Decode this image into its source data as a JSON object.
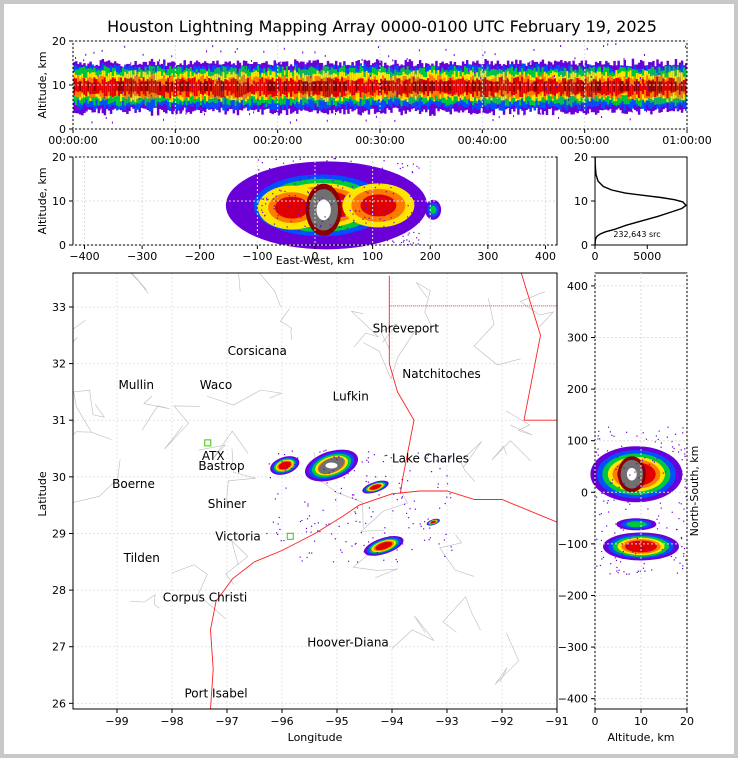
{
  "title": "Houston Lightning Mapping Array 0000-0100 UTC February 19, 2025",
  "chart_data": [
    {
      "type": "heatmap",
      "name": "altitude-time",
      "ylabel": "Altitude, km",
      "xlabel": "",
      "x_ticks": [
        "00:00:00",
        "00:10:00",
        "00:20:00",
        "00:30:00",
        "00:40:00",
        "00:50:00",
        "01:00:00"
      ],
      "y_ticks": [
        "0",
        "10",
        "20"
      ],
      "ylim": [
        0,
        20
      ],
      "grid": true,
      "note_bands": [
        {
          "color": "#6a00d8",
          "alt": [
            4,
            15
          ]
        },
        {
          "color": "#0050ff",
          "alt": [
            5,
            14
          ]
        },
        {
          "color": "#00c83c",
          "alt": [
            6,
            13.5
          ]
        },
        {
          "color": "#ffe600",
          "alt": [
            7,
            12.5
          ]
        },
        {
          "color": "#ff7a00",
          "alt": [
            7.5,
            11.5
          ]
        },
        {
          "color": "#e00000",
          "alt": [
            8,
            11
          ]
        }
      ]
    },
    {
      "type": "heatmap",
      "name": "east-west-altitude",
      "xlabel": "East-West, km",
      "ylabel": "Altitude, km",
      "x_ticks": [
        "-400",
        "-300",
        "-200",
        "-100",
        "0",
        "100",
        "200",
        "300",
        "400"
      ],
      "y_ticks": [
        "0",
        "10",
        "20"
      ],
      "xlim": [
        -420,
        420
      ],
      "ylim": [
        0,
        20
      ],
      "grid": true
    },
    {
      "type": "line",
      "name": "altitude-histogram",
      "x_ticks": [
        "0",
        "5000"
      ],
      "y_ticks": [
        "0",
        "10",
        "20"
      ],
      "xlim": [
        0,
        8800
      ],
      "ylim": [
        0,
        20
      ],
      "annotation": "232,643 src",
      "x": [
        5,
        10,
        30,
        80,
        200,
        500,
        1000,
        1800,
        3000,
        4500,
        6000,
        7300,
        8300,
        8700,
        8400,
        7600,
        6300,
        4600,
        2900,
        1600,
        800,
        300,
        100,
        30,
        10
      ],
      "y": [
        0,
        0.5,
        1,
        1.5,
        2,
        2.5,
        3,
        3.5,
        4.5,
        5.5,
        6.5,
        7.5,
        8.3,
        9,
        9.8,
        10.3,
        10.8,
        11.3,
        11.8,
        12.5,
        13.3,
        14.5,
        16,
        18,
        20
      ]
    },
    {
      "type": "scatter",
      "name": "plan-view",
      "xlabel": "Longitude",
      "ylabel": "Latitude",
      "x_ticks": [
        "−99",
        "−98",
        "−97",
        "−96",
        "−95",
        "−94",
        "−93",
        "−92",
        "−91"
      ],
      "y_ticks": [
        "26",
        "27",
        "28",
        "29",
        "30",
        "31",
        "32",
        "33"
      ],
      "xlim": [
        -99.8,
        -91
      ],
      "ylim": [
        25.9,
        33.6
      ],
      "grid": true,
      "cities": [
        {
          "name": "Shreveport",
          "lon": -93.75,
          "lat": 32.55,
          "color": "#000000"
        },
        {
          "name": "Corsicana",
          "lon": -96.45,
          "lat": 32.15,
          "color": "#000000"
        },
        {
          "name": "Mullin",
          "lon": -98.65,
          "lat": 31.55,
          "color": "#ff8c40"
        },
        {
          "name": "Waco",
          "lon": -97.2,
          "lat": 31.55,
          "color": "#000000"
        },
        {
          "name": "Natchitoches",
          "lon": -93.1,
          "lat": 31.75,
          "color": "#000000"
        },
        {
          "name": "Lufkin",
          "lon": -94.75,
          "lat": 31.35,
          "color": "#000000"
        },
        {
          "name": "ATX",
          "lon": -97.25,
          "lat": 30.3,
          "color": "#ff8c40"
        },
        {
          "name": "Bastrop",
          "lon": -97.1,
          "lat": 30.12,
          "color": "#000000"
        },
        {
          "name": "Lake Charles",
          "lon": -93.3,
          "lat": 30.25,
          "color": "#000000"
        },
        {
          "name": "Boerne",
          "lon": -98.7,
          "lat": 29.8,
          "color": "#000000"
        },
        {
          "name": "Shiner",
          "lon": -97.0,
          "lat": 29.45,
          "color": "#000000"
        },
        {
          "name": "Victoria",
          "lon": -96.8,
          "lat": 28.88,
          "color": "#000000"
        },
        {
          "name": "Tilden",
          "lon": -98.55,
          "lat": 28.5,
          "color": "#000000"
        },
        {
          "name": "Corpus Christi",
          "lon": -97.4,
          "lat": 27.8,
          "color": "#000000"
        },
        {
          "name": "Hoover-Diana",
          "lon": -94.8,
          "lat": 27.0,
          "color": "#0000ff"
        },
        {
          "name": "Port Isabel",
          "lon": -97.2,
          "lat": 26.1,
          "color": "#000000"
        }
      ],
      "clusters": [
        {
          "lon": -95.1,
          "lat": 30.2,
          "w": 1.0,
          "h": 0.5
        },
        {
          "lon": -95.95,
          "lat": 30.2,
          "w": 0.55,
          "h": 0.3
        },
        {
          "lon": -94.15,
          "lat": 28.78,
          "w": 0.75,
          "h": 0.28
        },
        {
          "lon": -94.3,
          "lat": 29.82,
          "w": 0.5,
          "h": 0.18
        },
        {
          "lon": -93.25,
          "lat": 29.2,
          "w": 0.25,
          "h": 0.1
        }
      ]
    },
    {
      "type": "heatmap",
      "name": "altitude-north-south",
      "xlabel": "Altitude, km",
      "ylabel": "North-South, km",
      "x_ticks": [
        "0",
        "10",
        "20"
      ],
      "y_ticks": [
        "−400",
        "−300",
        "−200",
        "−100",
        "0",
        "100",
        "200",
        "300",
        "400"
      ],
      "xlim": [
        0,
        20
      ],
      "ylim": [
        -420,
        425
      ],
      "grid": true
    }
  ],
  "colors": {
    "purple": "#6a00d8",
    "blue": "#0050ff",
    "green": "#00c83c",
    "yellow": "#ffe600",
    "orange": "#ff7a00",
    "red": "#e00000",
    "darkred": "#8a0000",
    "gray": "#707070",
    "coast": "#ff2020"
  }
}
